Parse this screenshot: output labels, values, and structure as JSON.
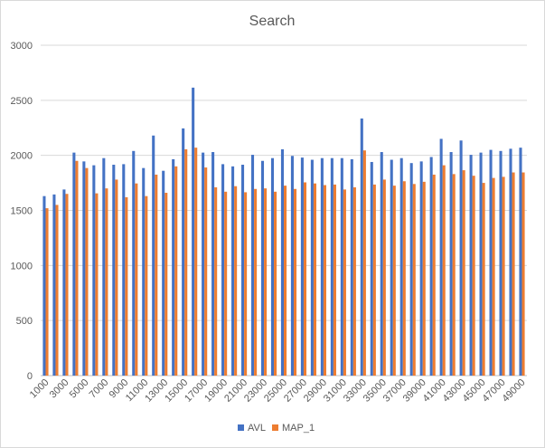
{
  "chart_data": {
    "type": "bar",
    "title": "Search",
    "xlabel": "",
    "ylabel": "",
    "ylim": [
      0,
      3000
    ],
    "yticks": [
      0,
      500,
      1000,
      1500,
      2000,
      2500,
      3000
    ],
    "grid": true,
    "legend_position": "bottom",
    "categories": [
      "1000",
      "2000",
      "3000",
      "4000",
      "5000",
      "6000",
      "7000",
      "8000",
      "9000",
      "10000",
      "11000",
      "12000",
      "13000",
      "14000",
      "15000",
      "16000",
      "17000",
      "18000",
      "19000",
      "20000",
      "21000",
      "22000",
      "23000",
      "24000",
      "25000",
      "26000",
      "27000",
      "28000",
      "29000",
      "30000",
      "31000",
      "32000",
      "33000",
      "34000",
      "35000",
      "36000",
      "37000",
      "38000",
      "39000",
      "40000",
      "41000",
      "42000",
      "43000",
      "44000",
      "45000",
      "46000",
      "47000",
      "48000",
      "49000"
    ],
    "tick_label_every": 2,
    "series": [
      {
        "name": "AVL",
        "color": "#4472c4",
        "values": [
          1630,
          1645,
          1690,
          2025,
          1945,
          1910,
          1975,
          1915,
          1920,
          2040,
          1885,
          2180,
          1860,
          1965,
          2245,
          2615,
          2025,
          2030,
          1920,
          1900,
          1915,
          2005,
          1950,
          1975,
          2055,
          1995,
          1980,
          1960,
          1975,
          1975,
          1975,
          1965,
          2335,
          1940,
          2030,
          1960,
          1975,
          1930,
          1945,
          1985,
          2150,
          2030,
          2135,
          2005,
          2025,
          2050,
          2040,
          2060,
          2070
        ]
      },
      {
        "name": "MAP_1",
        "color": "#ed7d31",
        "values": [
          1520,
          1550,
          1650,
          1950,
          1885,
          1655,
          1700,
          1780,
          1620,
          1745,
          1630,
          1825,
          1660,
          1900,
          2055,
          2070,
          1890,
          1710,
          1670,
          1720,
          1665,
          1695,
          1700,
          1670,
          1725,
          1695,
          1755,
          1745,
          1730,
          1735,
          1690,
          1710,
          2045,
          1735,
          1780,
          1725,
          1765,
          1740,
          1760,
          1825,
          1910,
          1830,
          1865,
          1815,
          1750,
          1795,
          1805,
          1845,
          1845
        ]
      }
    ]
  }
}
